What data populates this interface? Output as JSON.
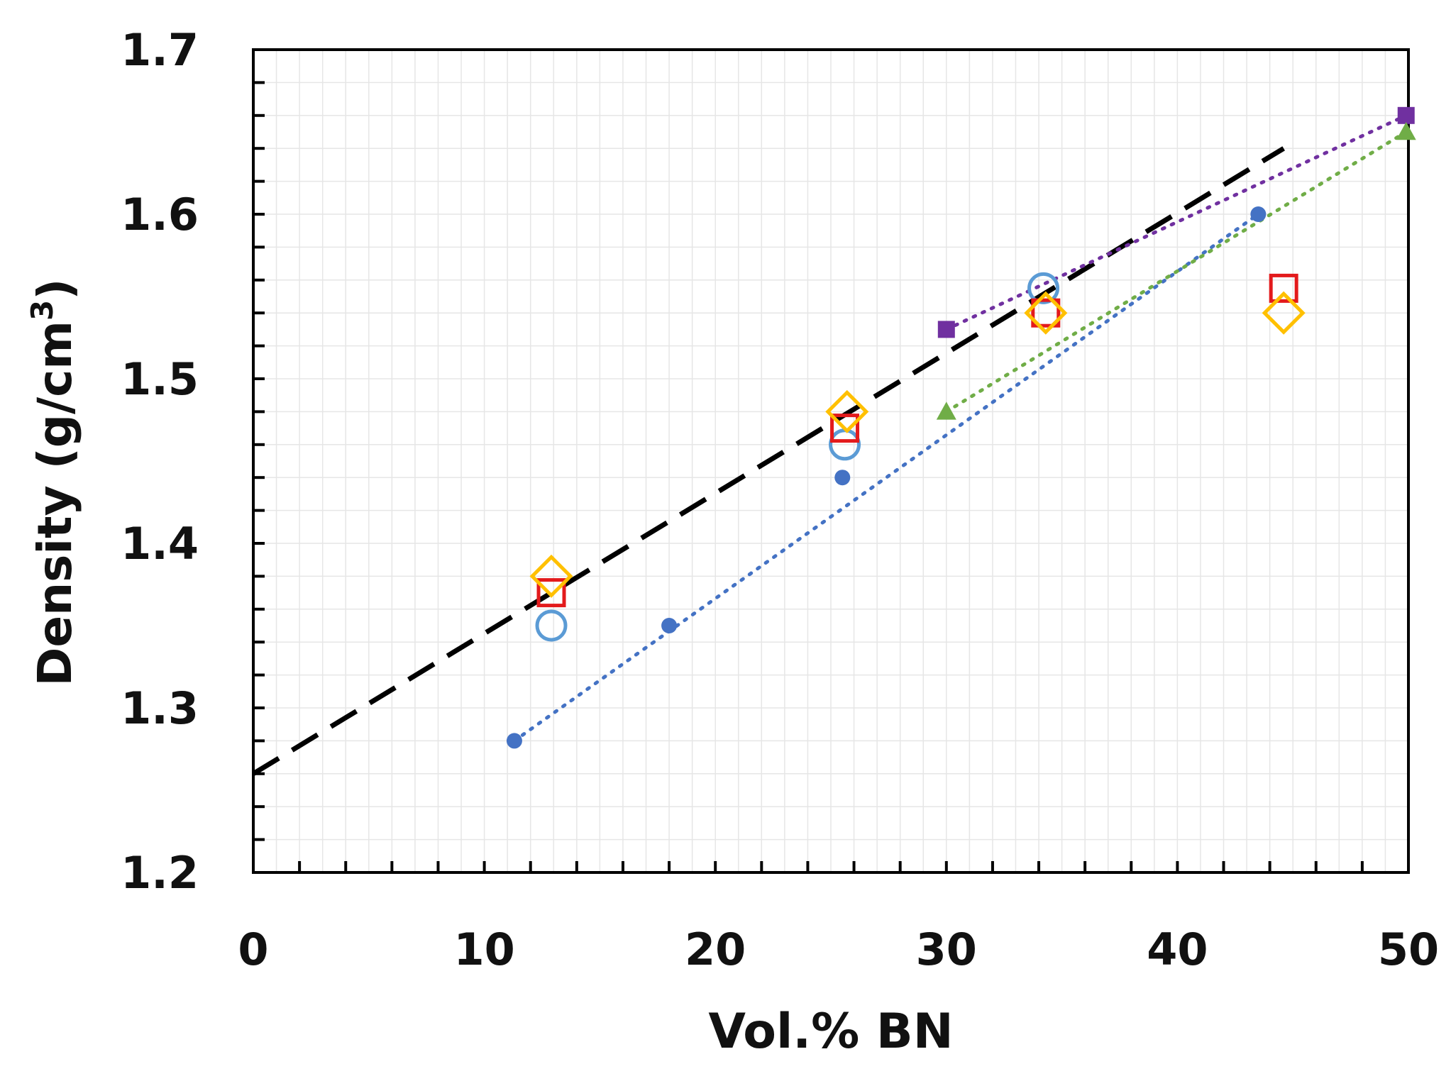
{
  "chart_data": {
    "type": "scatter",
    "xlabel": "Vol.% BN",
    "ylabel_main": "Density (g/cm",
    "ylabel_sup": "3",
    "ylabel_close": ")",
    "xlim": [
      0,
      50
    ],
    "ylim": [
      1.2,
      1.7
    ],
    "x_ticks": [
      0,
      10,
      20,
      30,
      40,
      50
    ],
    "y_ticks": [
      1.2,
      1.3,
      1.4,
      1.5,
      1.6,
      1.7
    ],
    "x_tick_labels": [
      "0",
      "10",
      "20",
      "30",
      "40",
      "50"
    ],
    "y_tick_labels": [
      "1.2",
      "1.3",
      "1.4",
      "1.5",
      "1.6",
      "1.7"
    ],
    "grid": true,
    "colors": {
      "blue_filled": "#4472c4",
      "blue_open": "#5b9bd5",
      "red": "#e31a1c",
      "orange": "#ffc000",
      "purple": "#7030a0",
      "green": "#70ad47",
      "black": "#000000",
      "grid": "#e6e6e6"
    },
    "series": [
      {
        "name": "blue filled circles",
        "marker": "circle-filled",
        "color": "#4472c4",
        "x": [
          11.3,
          18.0,
          25.5,
          43.5
        ],
        "y": [
          1.28,
          1.35,
          1.44,
          1.6
        ]
      },
      {
        "name": "blue open circles",
        "marker": "circle-open",
        "color": "#5b9bd5",
        "x": [
          12.9,
          25.6,
          34.2
        ],
        "y": [
          1.35,
          1.46,
          1.555
        ]
      },
      {
        "name": "red open squares",
        "marker": "square-open",
        "color": "#e31a1c",
        "x": [
          12.9,
          25.6,
          34.3,
          44.6
        ],
        "y": [
          1.37,
          1.47,
          1.54,
          1.555
        ]
      },
      {
        "name": "orange open diamonds",
        "marker": "diamond-open",
        "color": "#ffc000",
        "x": [
          12.9,
          25.7,
          34.3,
          44.6
        ],
        "y": [
          1.38,
          1.48,
          1.54,
          1.54
        ]
      },
      {
        "name": "purple filled squares",
        "marker": "square-filled",
        "color": "#7030a0",
        "x": [
          30.0,
          49.9
        ],
        "y": [
          1.53,
          1.66
        ]
      },
      {
        "name": "green filled triangles",
        "marker": "triangle-filled",
        "color": "#70ad47",
        "x": [
          30.0,
          49.9
        ],
        "y": [
          1.48,
          1.65
        ]
      }
    ],
    "lines": [
      {
        "name": "black dashed trend",
        "style": "dashed",
        "color": "#000000",
        "x": [
          0,
          44.6
        ],
        "y": [
          1.26,
          1.64
        ]
      },
      {
        "name": "blue dotted trend",
        "style": "dotted",
        "color": "#4472c4",
        "x": [
          11.3,
          43.5
        ],
        "y": [
          1.28,
          1.6
        ]
      },
      {
        "name": "purple dotted trend",
        "style": "dotted",
        "color": "#7030a0",
        "x": [
          30.0,
          49.9
        ],
        "y": [
          1.53,
          1.66
        ]
      },
      {
        "name": "green dotted trend",
        "style": "dotted",
        "color": "#70ad47",
        "x": [
          30.0,
          49.9
        ],
        "y": [
          1.48,
          1.65
        ]
      }
    ]
  }
}
